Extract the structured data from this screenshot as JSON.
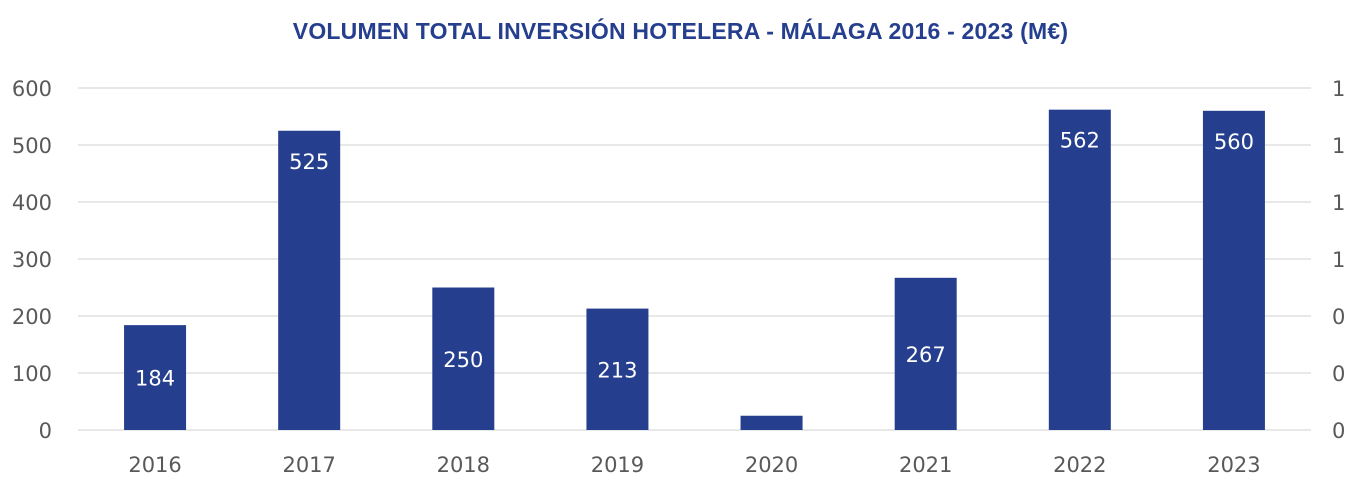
{
  "chart_data": {
    "type": "bar",
    "title": "VOLUMEN TOTAL INVERSIÓN HOTELERA - MÁLAGA 2016 - 2023 (M€)",
    "categories": [
      "2016",
      "2017",
      "2018",
      "2019",
      "2020",
      "2021",
      "2022",
      "2023"
    ],
    "series": [
      {
        "values": [
          184,
          525,
          250,
          213,
          25,
          267,
          562,
          560
        ],
        "data_labels": [
          "184",
          "525",
          "250",
          "213",
          "",
          "267",
          "562",
          "560"
        ]
      }
    ],
    "ylim": [
      0,
      600
    ],
    "y_ticks": [
      "0",
      "100",
      "200",
      "300",
      "400",
      "500",
      "600"
    ],
    "secondary_y_ticks": [
      "0",
      "0",
      "0",
      "1",
      "1",
      "1",
      "1"
    ],
    "grid": true,
    "legend": "none",
    "bar_color": "#253f8e",
    "title_color": "#253f8e",
    "label_color": "#ffffff",
    "axis_text_color": "#595959",
    "grid_color": "#d9d9d9"
  }
}
